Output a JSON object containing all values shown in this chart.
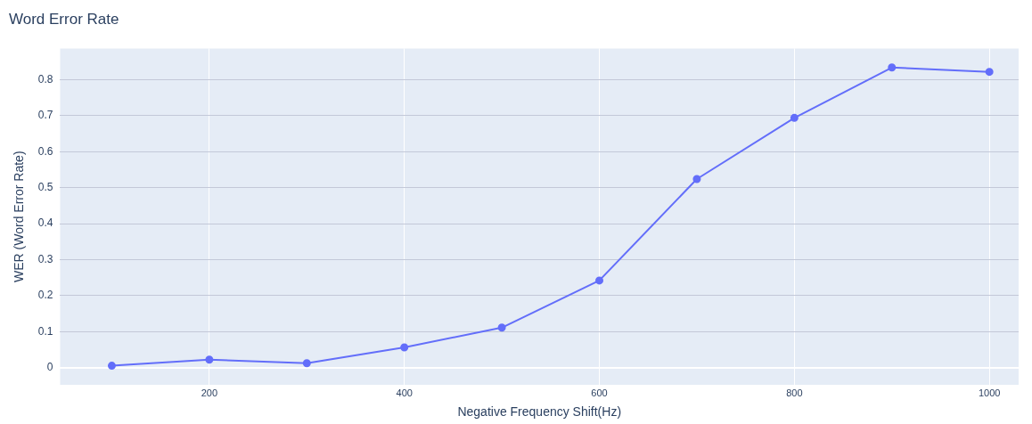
{
  "chart_data": {
    "type": "line",
    "title": "Word Error Rate",
    "xlabel": "Negative Frequency Shift(Hz)",
    "ylabel": "WER (Word Error Rate)",
    "x": [
      100,
      200,
      300,
      400,
      500,
      600,
      700,
      800,
      900,
      1000
    ],
    "series": [
      {
        "color": "#636efa",
        "values": [
          0.005,
          0.022,
          0.012,
          0.056,
          0.111,
          0.242,
          0.524,
          0.694,
          0.834,
          0.822
        ]
      }
    ],
    "xlim": [
      47,
      1030
    ],
    "ylim": [
      -0.048,
      0.887
    ],
    "xticks": [
      200,
      400,
      600,
      800,
      1000
    ],
    "yticks": [
      0,
      0.1,
      0.2,
      0.3,
      0.4,
      0.5,
      0.6,
      0.7,
      0.8
    ],
    "grid": true,
    "legend": false,
    "marker": "circle",
    "line_style": "solid"
  }
}
